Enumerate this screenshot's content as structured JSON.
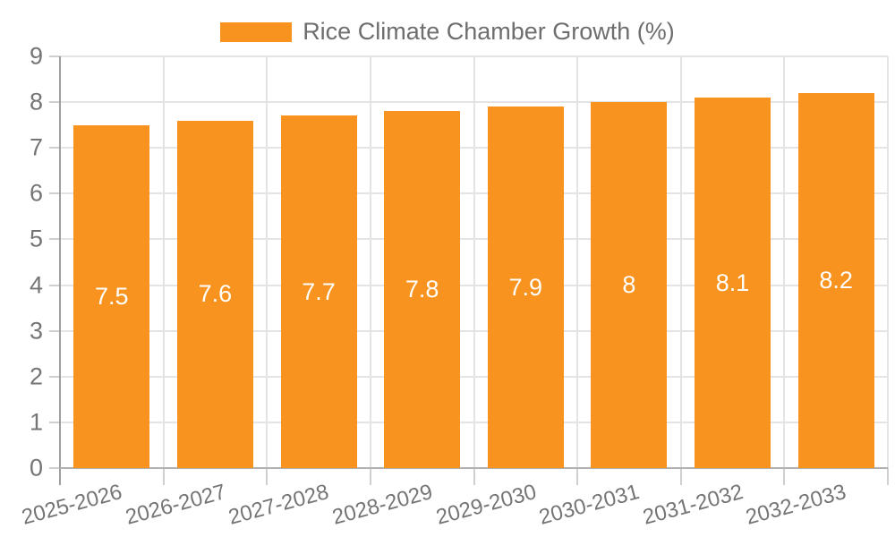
{
  "chart_data": {
    "type": "bar",
    "title": "",
    "legend": {
      "label": "Rice Climate Chamber Growth (%)",
      "position": "top"
    },
    "categories": [
      "2025-2026",
      "2026-2027",
      "2027-2028",
      "2028-2029",
      "2029-2030",
      "2030-2031",
      "2031-2032",
      "2032-2033"
    ],
    "values": [
      7.5,
      7.6,
      7.7,
      7.8,
      7.9,
      8,
      8.1,
      8.2
    ],
    "bar_labels": [
      "7.5",
      "7.6",
      "7.7",
      "7.8",
      "7.9",
      "8",
      "8.1",
      "8.2"
    ],
    "xlabel": "",
    "ylabel": "",
    "ylim": [
      0,
      9
    ],
    "yticks": [
      0,
      1,
      2,
      3,
      4,
      5,
      6,
      7,
      8,
      9
    ],
    "grid": true,
    "colors": {
      "bar": "#F7931E",
      "bar_label": "#FFFFFF",
      "axis_text": "#757575",
      "legend_text": "#6E6E6E",
      "grid_line": "#E4E4E4",
      "tick_line": "#CFCFCF",
      "y_axis_line": "#9F9F9F",
      "x_axis_line": "#B0B0B0",
      "background": "#FFFFFF"
    }
  }
}
